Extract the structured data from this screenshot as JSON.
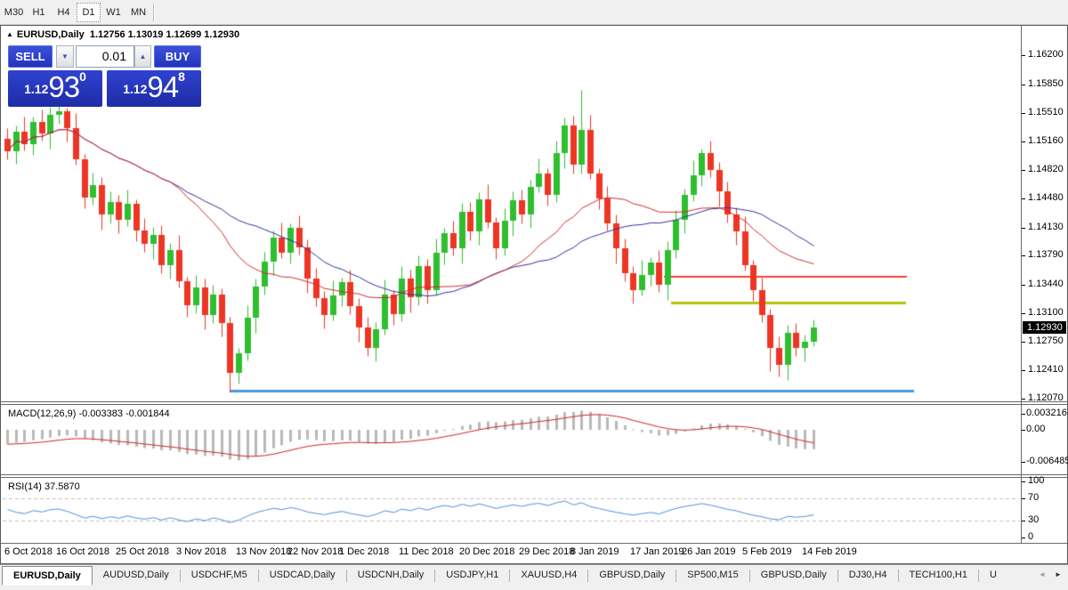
{
  "toolbar": {
    "timeframes": [
      {
        "label": "M30",
        "active": false
      },
      {
        "label": "H1",
        "active": false
      },
      {
        "label": "H4",
        "active": false
      },
      {
        "label": "D1",
        "active": true
      },
      {
        "label": "W1",
        "active": false
      },
      {
        "label": "MN",
        "active": false
      }
    ]
  },
  "chart": {
    "title_marker": "▲",
    "symbol_title": "EURUSD,Daily",
    "ohlc_text": "1.12756 1.13019 1.12699 1.12930",
    "current_price": "1.12930",
    "y_axis_labels": [
      "1.16200",
      "1.15850",
      "1.15510",
      "1.15160",
      "1.14820",
      "1.14480",
      "1.14130",
      "1.13790",
      "1.13440",
      "1.13100",
      "1.12750",
      "1.12410",
      "1.12070"
    ],
    "x_axis_dates": [
      {
        "label": "6 Oct 2018",
        "bar": 0
      },
      {
        "label": "16 Oct 2018",
        "bar": 6
      },
      {
        "label": "25 Oct 2018",
        "bar": 13
      },
      {
        "label": "3 Nov 2018",
        "bar": 20
      },
      {
        "label": "13 Nov 2018",
        "bar": 27
      },
      {
        "label": "22 Nov 2018",
        "bar": 33
      },
      {
        "label": "1 Dec 2018",
        "bar": 39
      },
      {
        "label": "11 Dec 2018",
        "bar": 46
      },
      {
        "label": "20 Dec 2018",
        "bar": 53
      },
      {
        "label": "29 Dec 2018",
        "bar": 60
      },
      {
        "label": "8 Jan 2019",
        "bar": 66
      },
      {
        "label": "17 Jan 2019",
        "bar": 73
      },
      {
        "label": "26 Jan 2019",
        "bar": 79
      },
      {
        "label": "5 Feb 2019",
        "bar": 86
      },
      {
        "label": "14 Feb 2019",
        "bar": 93
      }
    ]
  },
  "trade_panel": {
    "sell_label": "SELL",
    "buy_label": "BUY",
    "lot_size": "0.01",
    "spinner_down_icon": "▼",
    "spinner_up_icon": "▲",
    "sell_price": {
      "small": "1.12",
      "big": "93",
      "sup": "0"
    },
    "buy_price": {
      "small": "1.12",
      "big": "94",
      "sup": "8"
    }
  },
  "macd_pane": {
    "label": "MACD(12,26,9) -0.003383 -0.001844",
    "axis_labels": [
      {
        "text": "0.003216",
        "value": 0.003216
      },
      {
        "text": "0.00",
        "value": 0.0
      },
      {
        "text": "-0.006485",
        "value": -0.006485
      }
    ],
    "fast": 12,
    "slow": 26,
    "signal": 9
  },
  "rsi_pane": {
    "label": "RSI(14) 37.5870",
    "period": 14,
    "axis_labels": [
      {
        "text": "100",
        "value": 100
      },
      {
        "text": "70",
        "value": 70
      },
      {
        "text": "30",
        "value": 30
      },
      {
        "text": "0",
        "value": 0
      }
    ],
    "dashed_levels": [
      70,
      30
    ]
  },
  "tab_bar": {
    "tabs": [
      {
        "label": "EURUSD,Daily",
        "active": true
      },
      {
        "label": "AUDUSD,Daily",
        "active": false
      },
      {
        "label": "USDCHF,M5",
        "active": false
      },
      {
        "label": "USDCAD,Daily",
        "active": false
      },
      {
        "label": "USDCNH,Daily",
        "active": false
      },
      {
        "label": "USDJPY,H1",
        "active": false
      },
      {
        "label": "XAUUSD,H4",
        "active": false
      },
      {
        "label": "GBPUSD,Daily",
        "active": false
      },
      {
        "label": "SP500,M15",
        "active": false
      },
      {
        "label": "GBPUSD,Daily",
        "active": false
      },
      {
        "label": "DJ30,H4",
        "active": false
      },
      {
        "label": "TECH100,H1",
        "active": false
      },
      {
        "label": "U",
        "active": false
      }
    ],
    "scroll_left_icon": "◄",
    "scroll_right_icon": "►"
  },
  "chart_data": {
    "type": "candlestick",
    "symbol": "EURUSD",
    "timeframe": "Daily",
    "last_ohlc": {
      "open": 1.12756,
      "high": 1.13019,
      "low": 1.12699,
      "close": 1.1293
    },
    "colors": {
      "bull": "#2fbe2f",
      "bear": "#ee3524",
      "ma_fast": "#d22a2a",
      "ma_slow": "#3030a0",
      "macd_hist": "#b9b9b9",
      "macd_signal": "#cc2222",
      "rsi_line": "#4a90d8",
      "level_dash": "#c0c0c0",
      "hline_red": "#ef4438",
      "hline_olive": "#b5c40e",
      "hline_blue": "#449bdf"
    },
    "moving_averages": [
      {
        "name": "fast",
        "period": 20
      },
      {
        "name": "slow",
        "period": 30
      }
    ],
    "hlines": [
      {
        "name": "resistance-red",
        "price": 1.13536,
        "color_key": "hline_red",
        "width": 2,
        "bar_start": 76.6,
        "bar_end": 104.9
      },
      {
        "name": "resistance-olive",
        "price": 1.13226,
        "color_key": "hline_olive",
        "width": 3,
        "bar_start": 77.4,
        "bar_end": 104.8
      },
      {
        "name": "support-blue",
        "price": 1.12166,
        "color_key": "hline_blue",
        "width": 3,
        "bar_start": 26.0,
        "bar_end": 105.8
      }
    ],
    "candles": [
      [
        1.152,
        1.1532,
        1.1495,
        1.1505
      ],
      [
        1.1505,
        1.1536,
        1.1489,
        1.1528
      ],
      [
        1.1528,
        1.1546,
        1.1506,
        1.1513
      ],
      [
        1.1513,
        1.1546,
        1.15,
        1.154
      ],
      [
        1.154,
        1.1555,
        1.1517,
        1.1526
      ],
      [
        1.1526,
        1.1558,
        1.1508,
        1.1548
      ],
      [
        1.1548,
        1.156,
        1.1538,
        1.1553
      ],
      [
        1.1553,
        1.1557,
        1.1516,
        1.1532
      ],
      [
        1.1532,
        1.155,
        1.1488,
        1.1495
      ],
      [
        1.1495,
        1.1501,
        1.1436,
        1.1449
      ],
      [
        1.1449,
        1.1479,
        1.144,
        1.1464
      ],
      [
        1.1464,
        1.1474,
        1.141,
        1.1428
      ],
      [
        1.1428,
        1.1456,
        1.1418,
        1.1444
      ],
      [
        1.1444,
        1.1452,
        1.1406,
        1.1422
      ],
      [
        1.1422,
        1.1459,
        1.1415,
        1.1441
      ],
      [
        1.1441,
        1.1447,
        1.1396,
        1.1409
      ],
      [
        1.1409,
        1.1424,
        1.1384,
        1.1393
      ],
      [
        1.1393,
        1.1414,
        1.1375,
        1.1404
      ],
      [
        1.1404,
        1.1416,
        1.1358,
        1.1368
      ],
      [
        1.1368,
        1.1394,
        1.1352,
        1.1386
      ],
      [
        1.1386,
        1.1404,
        1.1341,
        1.1348
      ],
      [
        1.1348,
        1.1354,
        1.1306,
        1.1319
      ],
      [
        1.1319,
        1.1356,
        1.131,
        1.1341
      ],
      [
        1.1341,
        1.1351,
        1.129,
        1.1308
      ],
      [
        1.1308,
        1.1344,
        1.1298,
        1.1332
      ],
      [
        1.1332,
        1.134,
        1.1282,
        1.1298
      ],
      [
        1.1298,
        1.1305,
        1.1216,
        1.1238
      ],
      [
        1.1238,
        1.1268,
        1.1225,
        1.1262
      ],
      [
        1.1262,
        1.1319,
        1.1253,
        1.1304
      ],
      [
        1.1304,
        1.1352,
        1.1286,
        1.1342
      ],
      [
        1.1342,
        1.1384,
        1.1332,
        1.1372
      ],
      [
        1.1372,
        1.1409,
        1.1356,
        1.1401
      ],
      [
        1.1401,
        1.1419,
        1.1376,
        1.1383
      ],
      [
        1.1383,
        1.1418,
        1.137,
        1.1412
      ],
      [
        1.1412,
        1.1427,
        1.138,
        1.1389
      ],
      [
        1.1389,
        1.1399,
        1.1334,
        1.1352
      ],
      [
        1.1352,
        1.1364,
        1.1318,
        1.1328
      ],
      [
        1.1328,
        1.1336,
        1.1292,
        1.1308
      ],
      [
        1.1308,
        1.1349,
        1.1301,
        1.1331
      ],
      [
        1.1331,
        1.1353,
        1.1318,
        1.1347
      ],
      [
        1.1347,
        1.1362,
        1.1309,
        1.1318
      ],
      [
        1.1318,
        1.1328,
        1.1275,
        1.1293
      ],
      [
        1.1293,
        1.1305,
        1.1258,
        1.1268
      ],
      [
        1.1268,
        1.1299,
        1.1252,
        1.1291
      ],
      [
        1.1291,
        1.135,
        1.1284,
        1.1332
      ],
      [
        1.1332,
        1.1338,
        1.1296,
        1.1309
      ],
      [
        1.1309,
        1.1367,
        1.13,
        1.1352
      ],
      [
        1.1352,
        1.1362,
        1.1311,
        1.1329
      ],
      [
        1.1329,
        1.1379,
        1.1319,
        1.1367
      ],
      [
        1.1367,
        1.1375,
        1.1322,
        1.1338
      ],
      [
        1.1338,
        1.14,
        1.1331,
        1.1382
      ],
      [
        1.1382,
        1.1412,
        1.1369,
        1.1406
      ],
      [
        1.1406,
        1.1421,
        1.1379,
        1.1388
      ],
      [
        1.1388,
        1.1442,
        1.137,
        1.1432
      ],
      [
        1.1432,
        1.1444,
        1.1398,
        1.1408
      ],
      [
        1.1408,
        1.1455,
        1.1392,
        1.1447
      ],
      [
        1.1447,
        1.1465,
        1.1412,
        1.1419
      ],
      [
        1.1419,
        1.1425,
        1.1375,
        1.1388
      ],
      [
        1.1388,
        1.1436,
        1.1379,
        1.1421
      ],
      [
        1.1421,
        1.1456,
        1.1403,
        1.1446
      ],
      [
        1.1446,
        1.1458,
        1.1418,
        1.1428
      ],
      [
        1.1428,
        1.147,
        1.1412,
        1.1462
      ],
      [
        1.1462,
        1.1496,
        1.1455,
        1.1478
      ],
      [
        1.1478,
        1.1484,
        1.1439,
        1.1452
      ],
      [
        1.1452,
        1.1517,
        1.1443,
        1.1502
      ],
      [
        1.1502,
        1.1545,
        1.1484,
        1.1535
      ],
      [
        1.1535,
        1.1547,
        1.1478,
        1.1488
      ],
      [
        1.1488,
        1.1578,
        1.1478,
        1.153
      ],
      [
        1.153,
        1.1548,
        1.1471,
        1.1478
      ],
      [
        1.1478,
        1.1484,
        1.1435,
        1.1448
      ],
      [
        1.1448,
        1.1463,
        1.1409,
        1.1418
      ],
      [
        1.1418,
        1.1428,
        1.137,
        1.1388
      ],
      [
        1.1388,
        1.14,
        1.1348,
        1.1358
      ],
      [
        1.1358,
        1.1366,
        1.1322,
        1.1338
      ],
      [
        1.1338,
        1.1374,
        1.1331,
        1.1356
      ],
      [
        1.1356,
        1.1377,
        1.1343,
        1.1371
      ],
      [
        1.1371,
        1.1386,
        1.1335,
        1.1344
      ],
      [
        1.1344,
        1.1396,
        1.1326,
        1.1386
      ],
      [
        1.1386,
        1.1434,
        1.1376,
        1.1422
      ],
      [
        1.1422,
        1.146,
        1.1406,
        1.1452
      ],
      [
        1.1452,
        1.1494,
        1.1445,
        1.1476
      ],
      [
        1.1476,
        1.1508,
        1.1463,
        1.1502
      ],
      [
        1.1502,
        1.1517,
        1.1473,
        1.1482
      ],
      [
        1.1482,
        1.1492,
        1.1438,
        1.1456
      ],
      [
        1.1456,
        1.1468,
        1.1419,
        1.1429
      ],
      [
        1.1429,
        1.1437,
        1.1392,
        1.1408
      ],
      [
        1.1408,
        1.1426,
        1.1361,
        1.1368
      ],
      [
        1.1368,
        1.1374,
        1.1325,
        1.1338
      ],
      [
        1.1338,
        1.1353,
        1.1299,
        1.1308
      ],
      [
        1.1308,
        1.1315,
        1.124,
        1.1268
      ],
      [
        1.1268,
        1.1282,
        1.1234,
        1.1248
      ],
      [
        1.1248,
        1.1296,
        1.123,
        1.1286
      ],
      [
        1.1286,
        1.1298,
        1.1258,
        1.1268
      ],
      [
        1.1268,
        1.1284,
        1.1252,
        1.1276
      ],
      [
        1.12756,
        1.13019,
        1.12699,
        1.1293
      ]
    ]
  }
}
